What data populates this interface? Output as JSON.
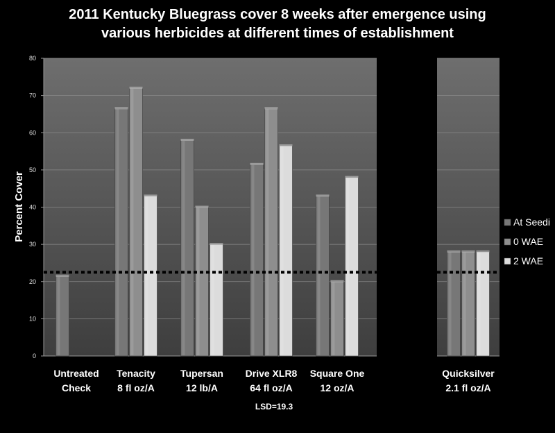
{
  "chart_data": {
    "type": "bar",
    "title_lines": [
      "2011 Kentucky Bluegrass cover 8 weeks after emergence using",
      "various herbicides at different times of establishment"
    ],
    "ylabel": "Percent Cover",
    "ylim": [
      0,
      80
    ],
    "yticks": [
      "0",
      "10",
      "20",
      "30",
      "40",
      "50",
      "60",
      "70",
      "80"
    ],
    "grid": true,
    "legend_position": "right",
    "categories": [
      [
        "Untreated",
        "Check"
      ],
      [
        "Tenacity",
        "8 fl oz/A"
      ],
      [
        "Tupersan",
        "12 lb/A"
      ],
      [
        "Drive XLR8",
        "64 fl oz/A"
      ],
      [
        "Square One",
        "12 oz/A"
      ],
      [
        "Quicksilver",
        "2.1 fl oz/A"
      ]
    ],
    "series": [
      {
        "name": "At Seedi",
        "values": [
          21.5,
          66.5,
          58,
          51.5,
          43,
          28
        ],
        "color": "#777777"
      },
      {
        "name": "0 WAE",
        "values": [
          null,
          72,
          40,
          66.5,
          20,
          28
        ],
        "color": "#8e8e8e"
      },
      {
        "name": "2 WAE",
        "values": [
          null,
          43,
          30,
          56.5,
          48,
          28
        ],
        "color": "#dcdcdc"
      }
    ],
    "reference_line": {
      "value": 22.5,
      "style": "dotted"
    },
    "annotation": "LSD=19.3"
  }
}
